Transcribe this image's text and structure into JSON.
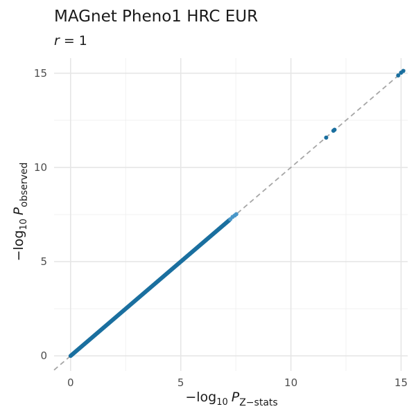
{
  "chart_data": {
    "type": "scatter",
    "title": "MAGnet Pheno1 HRC EUR",
    "subtitle": "r = 1",
    "subtitle_parts": {
      "var": "r",
      "rest": " = 1"
    },
    "xlabel": "−log10 P Z−stats",
    "xlabel_parts": {
      "prefix": "−log",
      "sub10": "10",
      "var": "P",
      "sub": "Z−stats"
    },
    "ylabel": "−log10 P observed",
    "ylabel_parts": {
      "prefix": "−log",
      "sub10": "10",
      "var": "P",
      "sub": "observed"
    },
    "xlim": [
      -0.75,
      15.3
    ],
    "ylim": [
      -0.8,
      15.8
    ],
    "x_ticks": [
      0,
      5,
      10,
      15
    ],
    "y_ticks": [
      0,
      5,
      10,
      15
    ],
    "x_tick_labels": [
      "0",
      "5",
      "10",
      "15"
    ],
    "y_tick_labels": [
      "0",
      "5",
      "10",
      "15"
    ],
    "grid": true,
    "reference_line": {
      "slope": 1,
      "intercept": 0,
      "style": "dashed",
      "color": "#a6a6a6"
    },
    "point_color": "#1a6f9f",
    "point_color_highlight": "#4a97c8",
    "series": [
      {
        "dense_segment": {
          "from": 0,
          "to": 7.2
        },
        "points": [
          {
            "x": 7.25,
            "y": 7.25
          },
          {
            "x": 7.35,
            "y": 7.37
          },
          {
            "x": 7.45,
            "y": 7.45
          },
          {
            "x": 7.52,
            "y": 7.52
          },
          {
            "x": 11.6,
            "y": 11.58
          },
          {
            "x": 11.93,
            "y": 11.95
          },
          {
            "x": 11.98,
            "y": 12.0
          },
          {
            "x": 14.87,
            "y": 14.88
          },
          {
            "x": 15.0,
            "y": 15.03
          },
          {
            "x": 15.1,
            "y": 15.12
          }
        ]
      }
    ]
  }
}
